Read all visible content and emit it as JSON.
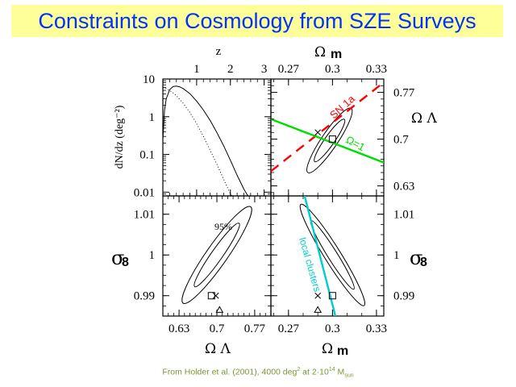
{
  "title": "Constraints on Cosmology from SZE Surveys",
  "caption": {
    "prefix": "From Holder et al. (2001), 4000 deg",
    "sup1": "2",
    "middle": " at 2·10",
    "sup2": "14",
    "suffix": " M",
    "sub": "sun"
  },
  "colors": {
    "title_bg": "#ffff99",
    "title_text": "#0033ff",
    "sn1a": "#ff0000",
    "flat": "#00dd00",
    "local_clusters": "#00cccc",
    "caption": "#779933"
  },
  "chart_data": [
    {
      "panel": "top-left",
      "type": "line",
      "xlabel": "z",
      "ylabel": "dN/dz (deg⁻²)",
      "xlim": [
        0,
        3.2
      ],
      "ylim_log10": [
        -2.1,
        1
      ],
      "yscale": "log",
      "xticks": [
        "1",
        "2",
        "3"
      ],
      "xtick_values": [
        1,
        2,
        3
      ],
      "yticks": [
        "10",
        "1",
        "0.1",
        "0.01"
      ],
      "ytick_values": [
        10,
        1,
        0.1,
        0.01
      ],
      "series": [
        {
          "name": "solid",
          "style": "solid",
          "x": [
            0.0,
            0.05,
            0.1,
            0.2,
            0.3,
            0.4,
            0.5,
            0.6,
            0.8,
            1.0,
            1.2,
            1.4,
            1.6,
            1.8,
            2.0,
            2.2,
            2.4,
            2.6,
            2.75
          ],
          "y": [
            0.25,
            1.5,
            3.0,
            5.2,
            6.3,
            6.5,
            6.2,
            5.6,
            4.1,
            2.6,
            1.5,
            0.8,
            0.38,
            0.17,
            0.07,
            0.028,
            0.012,
            0.006,
            0.004
          ]
        },
        {
          "name": "dotted",
          "style": "dotted",
          "x": [
            0.0,
            0.1,
            0.2,
            0.3,
            0.4,
            0.6,
            0.8,
            1.0,
            1.2,
            1.4,
            1.6,
            1.8,
            2.0,
            2.2,
            2.4
          ],
          "y": [
            6.0,
            5.6,
            5.0,
            4.3,
            3.6,
            2.3,
            1.3,
            0.65,
            0.3,
            0.13,
            0.055,
            0.022,
            0.009,
            0.005,
            0.003
          ]
        }
      ]
    },
    {
      "panel": "top-right",
      "type": "scatter",
      "xlabel": "Ω m",
      "ylabel": "Ω Λ",
      "xlim": [
        0.258,
        0.335
      ],
      "ylim": [
        0.615,
        0.79
      ],
      "xticks": [
        "0.27",
        "0.3",
        "0.33"
      ],
      "xtick_values": [
        0.27,
        0.3,
        0.33
      ],
      "yticks": [
        "0.77",
        "0.7",
        "0.63"
      ],
      "ytick_values": [
        0.77,
        0.7,
        0.63
      ],
      "contours": [
        {
          "name": "68%",
          "center": [
            0.298,
            0.698
          ],
          "rx": 0.0115,
          "ry": 0.008,
          "angle_deg": -55
        },
        {
          "name": "95%",
          "center": [
            0.298,
            0.698
          ],
          "rx": 0.0195,
          "ry": 0.0045,
          "angle_deg": -56
        }
      ],
      "lines": [
        {
          "name": "SN 1a",
          "style": "dashed",
          "color": "#ff0000",
          "x": [
            0.258,
            0.335
          ],
          "y": [
            0.652,
            0.785
          ],
          "label": "SN 1a"
        },
        {
          "name": "Ω=1",
          "style": "solid",
          "color": "#00dd00",
          "x": [
            0.258,
            0.335
          ],
          "y": [
            0.73,
            0.665
          ],
          "label": "Ω=1"
        }
      ],
      "markers": [
        {
          "symbol": "square",
          "x": 0.3,
          "y": 0.7
        },
        {
          "symbol": "x",
          "x": 0.29,
          "y": 0.71
        }
      ]
    },
    {
      "panel": "bottom-left",
      "type": "scatter",
      "xlabel": "Ω Λ",
      "ylabel": "σ8",
      "xlim": [
        0.6,
        0.8
      ],
      "ylim": [
        0.985,
        1.0145
      ],
      "xticks": [
        "0.63",
        "0.7",
        "0.77"
      ],
      "xtick_values": [
        0.63,
        0.7,
        0.77
      ],
      "yticks": [
        "1.01",
        "1",
        "0.99"
      ],
      "ytick_values": [
        1.01,
        1.0,
        0.99
      ],
      "annotation": "95%",
      "contours": [
        {
          "name": "68%",
          "center": [
            0.7,
            1.0
          ],
          "rx": 0.05,
          "ry": 0.0014,
          "angle_deg": -55
        },
        {
          "name": "95%",
          "center": [
            0.7,
            1.0
          ],
          "rx": 0.085,
          "ry": 0.0025,
          "angle_deg": -55
        }
      ],
      "markers": [
        {
          "symbol": "square",
          "x": 0.69,
          "y": 0.99
        },
        {
          "symbol": "x",
          "x": 0.698,
          "y": 0.99
        },
        {
          "symbol": "triangle",
          "x": 0.705,
          "y": 0.9865
        }
      ]
    },
    {
      "panel": "bottom-right",
      "type": "scatter",
      "xlabel": "Ω m",
      "ylabel": "σ8",
      "xlim": [
        0.258,
        0.335
      ],
      "ylim": [
        0.985,
        1.0145
      ],
      "xticks": [
        "0.27",
        "0.3",
        "0.33"
      ],
      "xtick_values": [
        0.27,
        0.3,
        0.33
      ],
      "yticks": [
        "1.01",
        "1",
        "0.99"
      ],
      "ytick_values": [
        1.01,
        1.0,
        0.99
      ],
      "contours": [
        {
          "name": "68%",
          "center": [
            0.3,
            1.0
          ],
          "rx": 0.0135,
          "ry": 0.0016,
          "angle_deg": 58
        },
        {
          "name": "95%",
          "center": [
            0.3,
            1.0
          ],
          "rx": 0.0215,
          "ry": 0.0026,
          "angle_deg": 58
        }
      ],
      "lines": [
        {
          "name": "local clusters",
          "style": "solid",
          "color": "#00cccc",
          "x": [
            0.281,
            0.302
          ],
          "y": [
            1.0145,
            0.985
          ],
          "label": "local clusters"
        }
      ],
      "markers": [
        {
          "symbol": "square",
          "x": 0.3,
          "y": 0.99
        },
        {
          "symbol": "x",
          "x": 0.29,
          "y": 0.99
        },
        {
          "symbol": "triangle",
          "x": 0.29,
          "y": 0.9865
        }
      ]
    }
  ]
}
